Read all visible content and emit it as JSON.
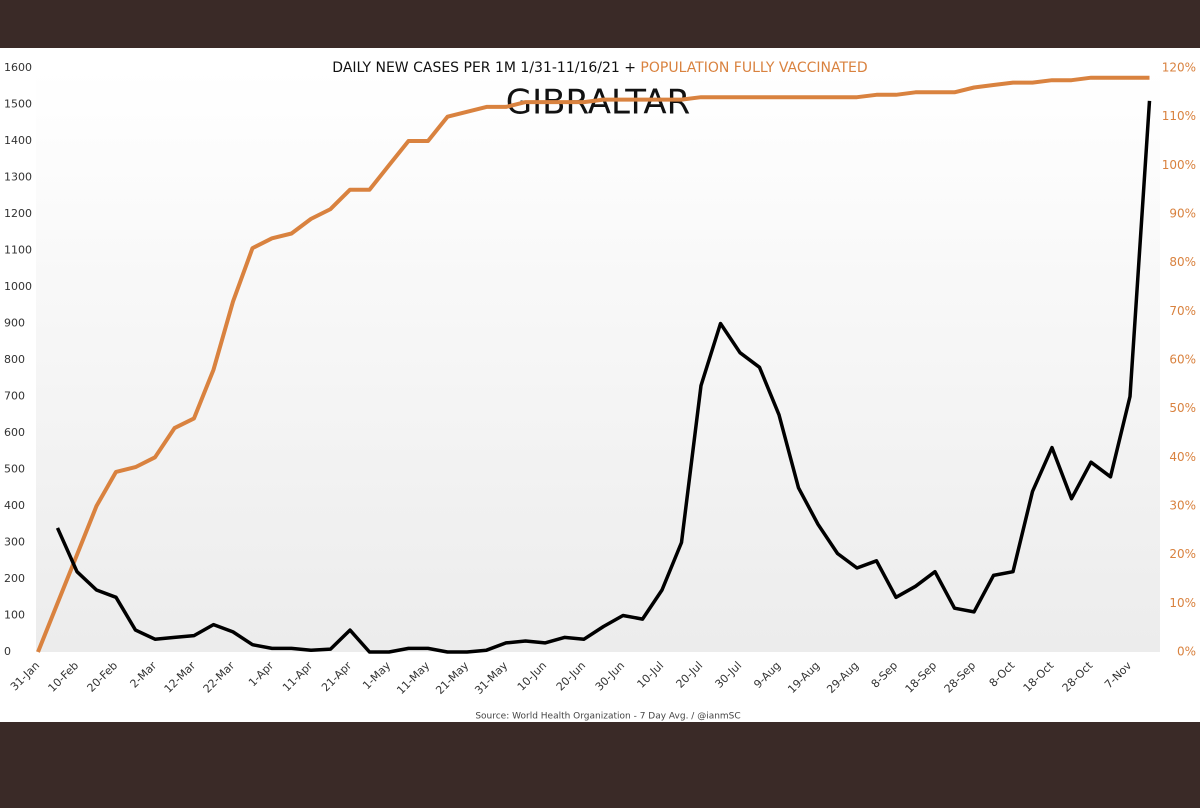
{
  "chart_data": {
    "type": "line",
    "title": "DAILY NEW CASES PER 1M 1/31-11/16/21 + ",
    "title_highlight": "POPULATION FULLY VACCINATED",
    "subtitle": "GIBRALTAR",
    "source": "Source: World Health Organization - 7 Day Avg. / @ianmSC",
    "categories": [
      "31-Jan",
      null,
      "10-Feb",
      null,
      "20-Feb",
      null,
      "2-Mar",
      null,
      "12-Mar",
      null,
      "22-Mar",
      null,
      "1-Apr",
      null,
      "11-Apr",
      null,
      "21-Apr",
      null,
      "1-May",
      null,
      "11-May",
      null,
      "21-May",
      null,
      "31-May",
      null,
      "10-Jun",
      null,
      "20-Jun",
      null,
      "30-Jun",
      null,
      "10-Jul",
      null,
      "20-Jul",
      null,
      "30-Jul",
      null,
      "9-Aug",
      null,
      "19-Aug",
      null,
      "29-Aug",
      null,
      "8-Sep",
      null,
      "18-Sep",
      null,
      "28-Sep",
      null,
      "8-Oct",
      null,
      "18-Oct",
      null,
      "28-Oct",
      null,
      "7-Nov",
      null
    ],
    "series": [
      {
        "name": "Daily new cases per 1M",
        "color": "#000000",
        "values": [
          null,
          340,
          220,
          170,
          150,
          60,
          35,
          40,
          45,
          75,
          55,
          20,
          10,
          10,
          5,
          8,
          60,
          0,
          0,
          10,
          10,
          0,
          0,
          5,
          25,
          30,
          25,
          40,
          35,
          70,
          100,
          90,
          170,
          300,
          730,
          900,
          820,
          780,
          650,
          450,
          350,
          270,
          230,
          250,
          150,
          180,
          220,
          120,
          110,
          210,
          220,
          440,
          560,
          420,
          520,
          480,
          700,
          1510
        ]
      },
      {
        "name": "Population fully vaccinated",
        "color": "#d9823f",
        "axis": "y2",
        "values": [
          0,
          10,
          20,
          30,
          37,
          38,
          40,
          46,
          48,
          58,
          72,
          83,
          85,
          86,
          89,
          91,
          95,
          95,
          100,
          105,
          105,
          110,
          111,
          112,
          112,
          113,
          113,
          113,
          113,
          113.5,
          113.5,
          113.5,
          113.5,
          113.5,
          114,
          114,
          114,
          114,
          114,
          114,
          114,
          114,
          114,
          114.5,
          114.5,
          115,
          115,
          115,
          116,
          116.5,
          117,
          117,
          117.5,
          117.5,
          118,
          118,
          118,
          118
        ]
      }
    ],
    "ylim": [
      0,
      1600
    ],
    "yticks": [
      0,
      100,
      200,
      300,
      400,
      500,
      600,
      700,
      800,
      900,
      1000,
      1100,
      1200,
      1300,
      1400,
      1500,
      1600
    ],
    "y2lim": [
      0,
      120
    ],
    "y2ticks": [
      {
        "value": 0,
        "label": "0%"
      },
      {
        "value": 10,
        "label": "10%"
      },
      {
        "value": 20,
        "label": "20%"
      },
      {
        "value": 30,
        "label": "30%"
      },
      {
        "value": 40,
        "label": "40%"
      },
      {
        "value": 50,
        "label": "50%"
      },
      {
        "value": 60,
        "label": "60%"
      },
      {
        "value": 70,
        "label": "70%"
      },
      {
        "value": 80,
        "label": "80%"
      },
      {
        "value": 90,
        "label": "90%"
      },
      {
        "value": 100,
        "label": "100%"
      },
      {
        "value": 110,
        "label": "110%"
      },
      {
        "value": 120,
        "label": "120%"
      }
    ]
  }
}
